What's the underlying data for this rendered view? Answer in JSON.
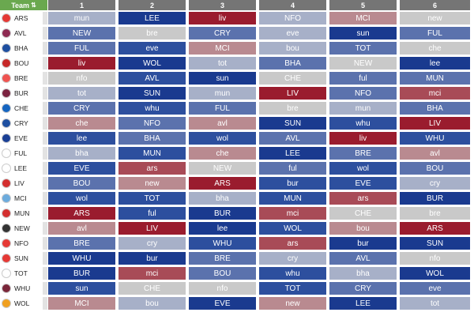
{
  "header": {
    "team_label": "Team",
    "sort_icon": "sort-icon",
    "columns": [
      "1",
      "2",
      "3",
      "4",
      "5",
      "6"
    ]
  },
  "rows": [
    {
      "team": "ARS",
      "badge": "#e53935",
      "cells": [
        {
          "t": "mun",
          "s": 3
        },
        {
          "t": "LEE",
          "s": 0
        },
        {
          "t": "liv",
          "s": 7
        },
        {
          "t": "NFO",
          "s": 3
        },
        {
          "t": "MCI",
          "s": 5
        },
        {
          "t": "new",
          "s": 4
        }
      ]
    },
    {
      "team": "AVL",
      "badge": "#8e2a52",
      "cells": [
        {
          "t": "NEW",
          "s": 2
        },
        {
          "t": "bre",
          "s": 4
        },
        {
          "t": "CRY",
          "s": 2
        },
        {
          "t": "eve",
          "s": 3
        },
        {
          "t": "sun",
          "s": 0
        },
        {
          "t": "FUL",
          "s": 2
        }
      ]
    },
    {
      "team": "BHA",
      "badge": "#1e4fa0",
      "cells": [
        {
          "t": "FUL",
          "s": 2
        },
        {
          "t": "eve",
          "s": 1
        },
        {
          "t": "MCI",
          "s": 5
        },
        {
          "t": "bou",
          "s": 3
        },
        {
          "t": "TOT",
          "s": 2
        },
        {
          "t": "che",
          "s": 4
        }
      ]
    },
    {
      "team": "BOU",
      "badge": "#c62828",
      "cells": [
        {
          "t": "liv",
          "s": 7
        },
        {
          "t": "WOL",
          "s": 0
        },
        {
          "t": "tot",
          "s": 3
        },
        {
          "t": "BHA",
          "s": 2
        },
        {
          "t": "NEW",
          "s": 4
        },
        {
          "t": "lee",
          "s": 0
        }
      ]
    },
    {
      "team": "BRE",
      "badge": "#ef5350",
      "cells": [
        {
          "t": "nfo",
          "s": 4
        },
        {
          "t": "AVL",
          "s": 1
        },
        {
          "t": "sun",
          "s": 0
        },
        {
          "t": "CHE",
          "s": 4
        },
        {
          "t": "ful",
          "s": 2
        },
        {
          "t": "MUN",
          "s": 2
        }
      ]
    },
    {
      "team": "BUR",
      "badge": "#7b2340",
      "cells": [
        {
          "t": "tot",
          "s": 3
        },
        {
          "t": "SUN",
          "s": 0
        },
        {
          "t": "mun",
          "s": 3
        },
        {
          "t": "LIV",
          "s": 7
        },
        {
          "t": "NFO",
          "s": 2
        },
        {
          "t": "mci",
          "s": 6
        }
      ]
    },
    {
      "team": "CHE",
      "badge": "#1565c0",
      "cells": [
        {
          "t": "CRY",
          "s": 2
        },
        {
          "t": "whu",
          "s": 1
        },
        {
          "t": "FUL",
          "s": 2
        },
        {
          "t": "bre",
          "s": 4
        },
        {
          "t": "mun",
          "s": 3
        },
        {
          "t": "BHA",
          "s": 2
        }
      ]
    },
    {
      "team": "CRY",
      "badge": "#1e4fa0",
      "cells": [
        {
          "t": "che",
          "s": 5
        },
        {
          "t": "NFO",
          "s": 2
        },
        {
          "t": "avl",
          "s": 5
        },
        {
          "t": "SUN",
          "s": 0
        },
        {
          "t": "whu",
          "s": 1
        },
        {
          "t": "LIV",
          "s": 7
        }
      ]
    },
    {
      "team": "EVE",
      "badge": "#1a3f95",
      "cells": [
        {
          "t": "lee",
          "s": 1
        },
        {
          "t": "BHA",
          "s": 2
        },
        {
          "t": "wol",
          "s": 1
        },
        {
          "t": "AVL",
          "s": 2
        },
        {
          "t": "liv",
          "s": 7
        },
        {
          "t": "WHU",
          "s": 1
        }
      ]
    },
    {
      "team": "FUL",
      "badge": "#ffffff",
      "cells": [
        {
          "t": "bha",
          "s": 3
        },
        {
          "t": "MUN",
          "s": 1
        },
        {
          "t": "che",
          "s": 5
        },
        {
          "t": "LEE",
          "s": 0
        },
        {
          "t": "BRE",
          "s": 2
        },
        {
          "t": "avl",
          "s": 5
        }
      ]
    },
    {
      "team": "LEE",
      "badge": "#ffffff",
      "cells": [
        {
          "t": "EVE",
          "s": 1
        },
        {
          "t": "ars",
          "s": 6
        },
        {
          "t": "NEW",
          "s": 4
        },
        {
          "t": "ful",
          "s": 2
        },
        {
          "t": "wol",
          "s": 1
        },
        {
          "t": "BOU",
          "s": 2
        }
      ]
    },
    {
      "team": "LIV",
      "badge": "#d32f2f",
      "cells": [
        {
          "t": "BOU",
          "s": 2
        },
        {
          "t": "new",
          "s": 5
        },
        {
          "t": "ARS",
          "s": 7
        },
        {
          "t": "bur",
          "s": 1
        },
        {
          "t": "EVE",
          "s": 1
        },
        {
          "t": "cry",
          "s": 3
        }
      ]
    },
    {
      "team": "MCI",
      "badge": "#6cabdd",
      "cells": [
        {
          "t": "wol",
          "s": 1
        },
        {
          "t": "TOT",
          "s": 1
        },
        {
          "t": "bha",
          "s": 3
        },
        {
          "t": "MUN",
          "s": 1
        },
        {
          "t": "ars",
          "s": 6
        },
        {
          "t": "BUR",
          "s": 0
        }
      ]
    },
    {
      "team": "MUN",
      "badge": "#d32f2f",
      "cells": [
        {
          "t": "ARS",
          "s": 7
        },
        {
          "t": "ful",
          "s": 1
        },
        {
          "t": "BUR",
          "s": 0
        },
        {
          "t": "mci",
          "s": 6
        },
        {
          "t": "CHE",
          "s": 4
        },
        {
          "t": "bre",
          "s": 4
        }
      ]
    },
    {
      "team": "NEW",
      "badge": "#333333",
      "cells": [
        {
          "t": "avl",
          "s": 5
        },
        {
          "t": "LIV",
          "s": 7
        },
        {
          "t": "lee",
          "s": 0
        },
        {
          "t": "WOL",
          "s": 1
        },
        {
          "t": "bou",
          "s": 5
        },
        {
          "t": "ARS",
          "s": 7
        }
      ]
    },
    {
      "team": "NFO",
      "badge": "#e53935",
      "cells": [
        {
          "t": "BRE",
          "s": 2
        },
        {
          "t": "cry",
          "s": 3
        },
        {
          "t": "WHU",
          "s": 1
        },
        {
          "t": "ars",
          "s": 6
        },
        {
          "t": "bur",
          "s": 0
        },
        {
          "t": "SUN",
          "s": 0
        }
      ]
    },
    {
      "team": "SUN",
      "badge": "#e53935",
      "cells": [
        {
          "t": "WHU",
          "s": 0
        },
        {
          "t": "bur",
          "s": 0
        },
        {
          "t": "BRE",
          "s": 2
        },
        {
          "t": "cry",
          "s": 3
        },
        {
          "t": "AVL",
          "s": 2
        },
        {
          "t": "nfo",
          "s": 4
        }
      ]
    },
    {
      "team": "TOT",
      "badge": "#ffffff",
      "cells": [
        {
          "t": "BUR",
          "s": 0
        },
        {
          "t": "mci",
          "s": 6
        },
        {
          "t": "BOU",
          "s": 2
        },
        {
          "t": "whu",
          "s": 1
        },
        {
          "t": "bha",
          "s": 3
        },
        {
          "t": "WOL",
          "s": 0
        }
      ]
    },
    {
      "team": "WHU",
      "badge": "#7a263a",
      "cells": [
        {
          "t": "sun",
          "s": 1
        },
        {
          "t": "CHE",
          "s": 4
        },
        {
          "t": "nfo",
          "s": 4
        },
        {
          "t": "TOT",
          "s": 1
        },
        {
          "t": "CRY",
          "s": 2
        },
        {
          "t": "eve",
          "s": 2
        }
      ]
    },
    {
      "team": "WOL",
      "badge": "#f0a020",
      "cells": [
        {
          "t": "MCI",
          "s": 5
        },
        {
          "t": "bou",
          "s": 3
        },
        {
          "t": "EVE",
          "s": 0
        },
        {
          "t": "new",
          "s": 5
        },
        {
          "t": "LEE",
          "s": 0
        },
        {
          "t": "tot",
          "s": 3
        }
      ]
    }
  ],
  "palette": [
    "#1a3a8f",
    "#2d4f9e",
    "#5b72ad",
    "#a7b0c8",
    "#c9c9c9",
    "#b98a90",
    "#a84b57",
    "#9a1c2e"
  ]
}
